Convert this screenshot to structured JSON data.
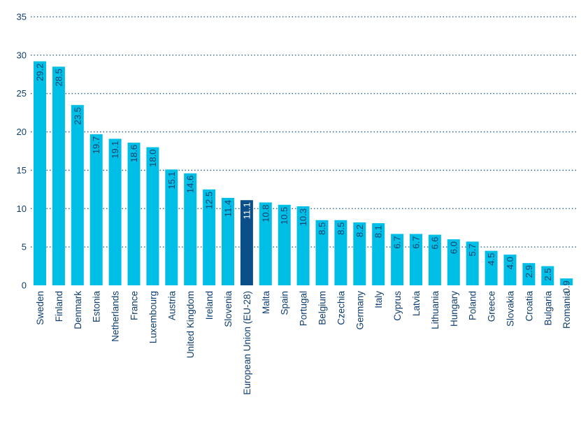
{
  "chart_data": {
    "type": "bar",
    "title": "",
    "xlabel": "",
    "ylabel": "",
    "ylim": [
      0,
      35
    ],
    "yticks": [
      0,
      5,
      10,
      15,
      20,
      25,
      30,
      35
    ],
    "grid": true,
    "categories": [
      "Sweden",
      "Finland",
      "Denmark",
      "Estonia",
      "Netherlands",
      "France",
      "Luxembourg",
      "Austria",
      "United Kingdom",
      "Ireland",
      "Slovenia",
      "European Union (EU-28)",
      "Malta",
      "Spain",
      "Portugal",
      "Belgium",
      "Czechia",
      "Germany",
      "Italy",
      "Cyprus",
      "Latvia",
      "Lithuania",
      "Hungary",
      "Poland",
      "Greece",
      "Slovakia",
      "Croatia",
      "Bulgaria",
      "Romania"
    ],
    "values": [
      29.2,
      28.5,
      23.5,
      19.7,
      19.1,
      18.6,
      18.0,
      15.1,
      14.6,
      12.5,
      11.4,
      11.1,
      10.8,
      10.5,
      10.3,
      8.5,
      8.5,
      8.2,
      8.1,
      6.7,
      6.7,
      6.6,
      6.0,
      5.7,
      4.5,
      4.0,
      2.9,
      2.5,
      0.9
    ],
    "value_labels": [
      "29.2",
      "28.5",
      "23.5",
      "19.7",
      "19.1",
      "18.6",
      "18.0",
      "15.1",
      "14.6",
      "12.5",
      "11.4",
      "11.1",
      "10.8",
      "10.5",
      "10.3",
      "8.5",
      "8.5",
      "8.2",
      "8.1",
      "6.7",
      "6.7",
      "6.6",
      "6.0",
      "5.7",
      "4.5",
      "4.0",
      "2.9",
      "2.5",
      "0.9"
    ],
    "highlight_category": "European Union (EU-28)",
    "colors": {
      "bar": "#00bfe6",
      "bar_highlight": "#0a4f87",
      "value_text": "#16406b",
      "value_text_highlight": "#ffffff",
      "axis_text": "#0f3f6f",
      "grid": "#1a5a8a"
    }
  }
}
